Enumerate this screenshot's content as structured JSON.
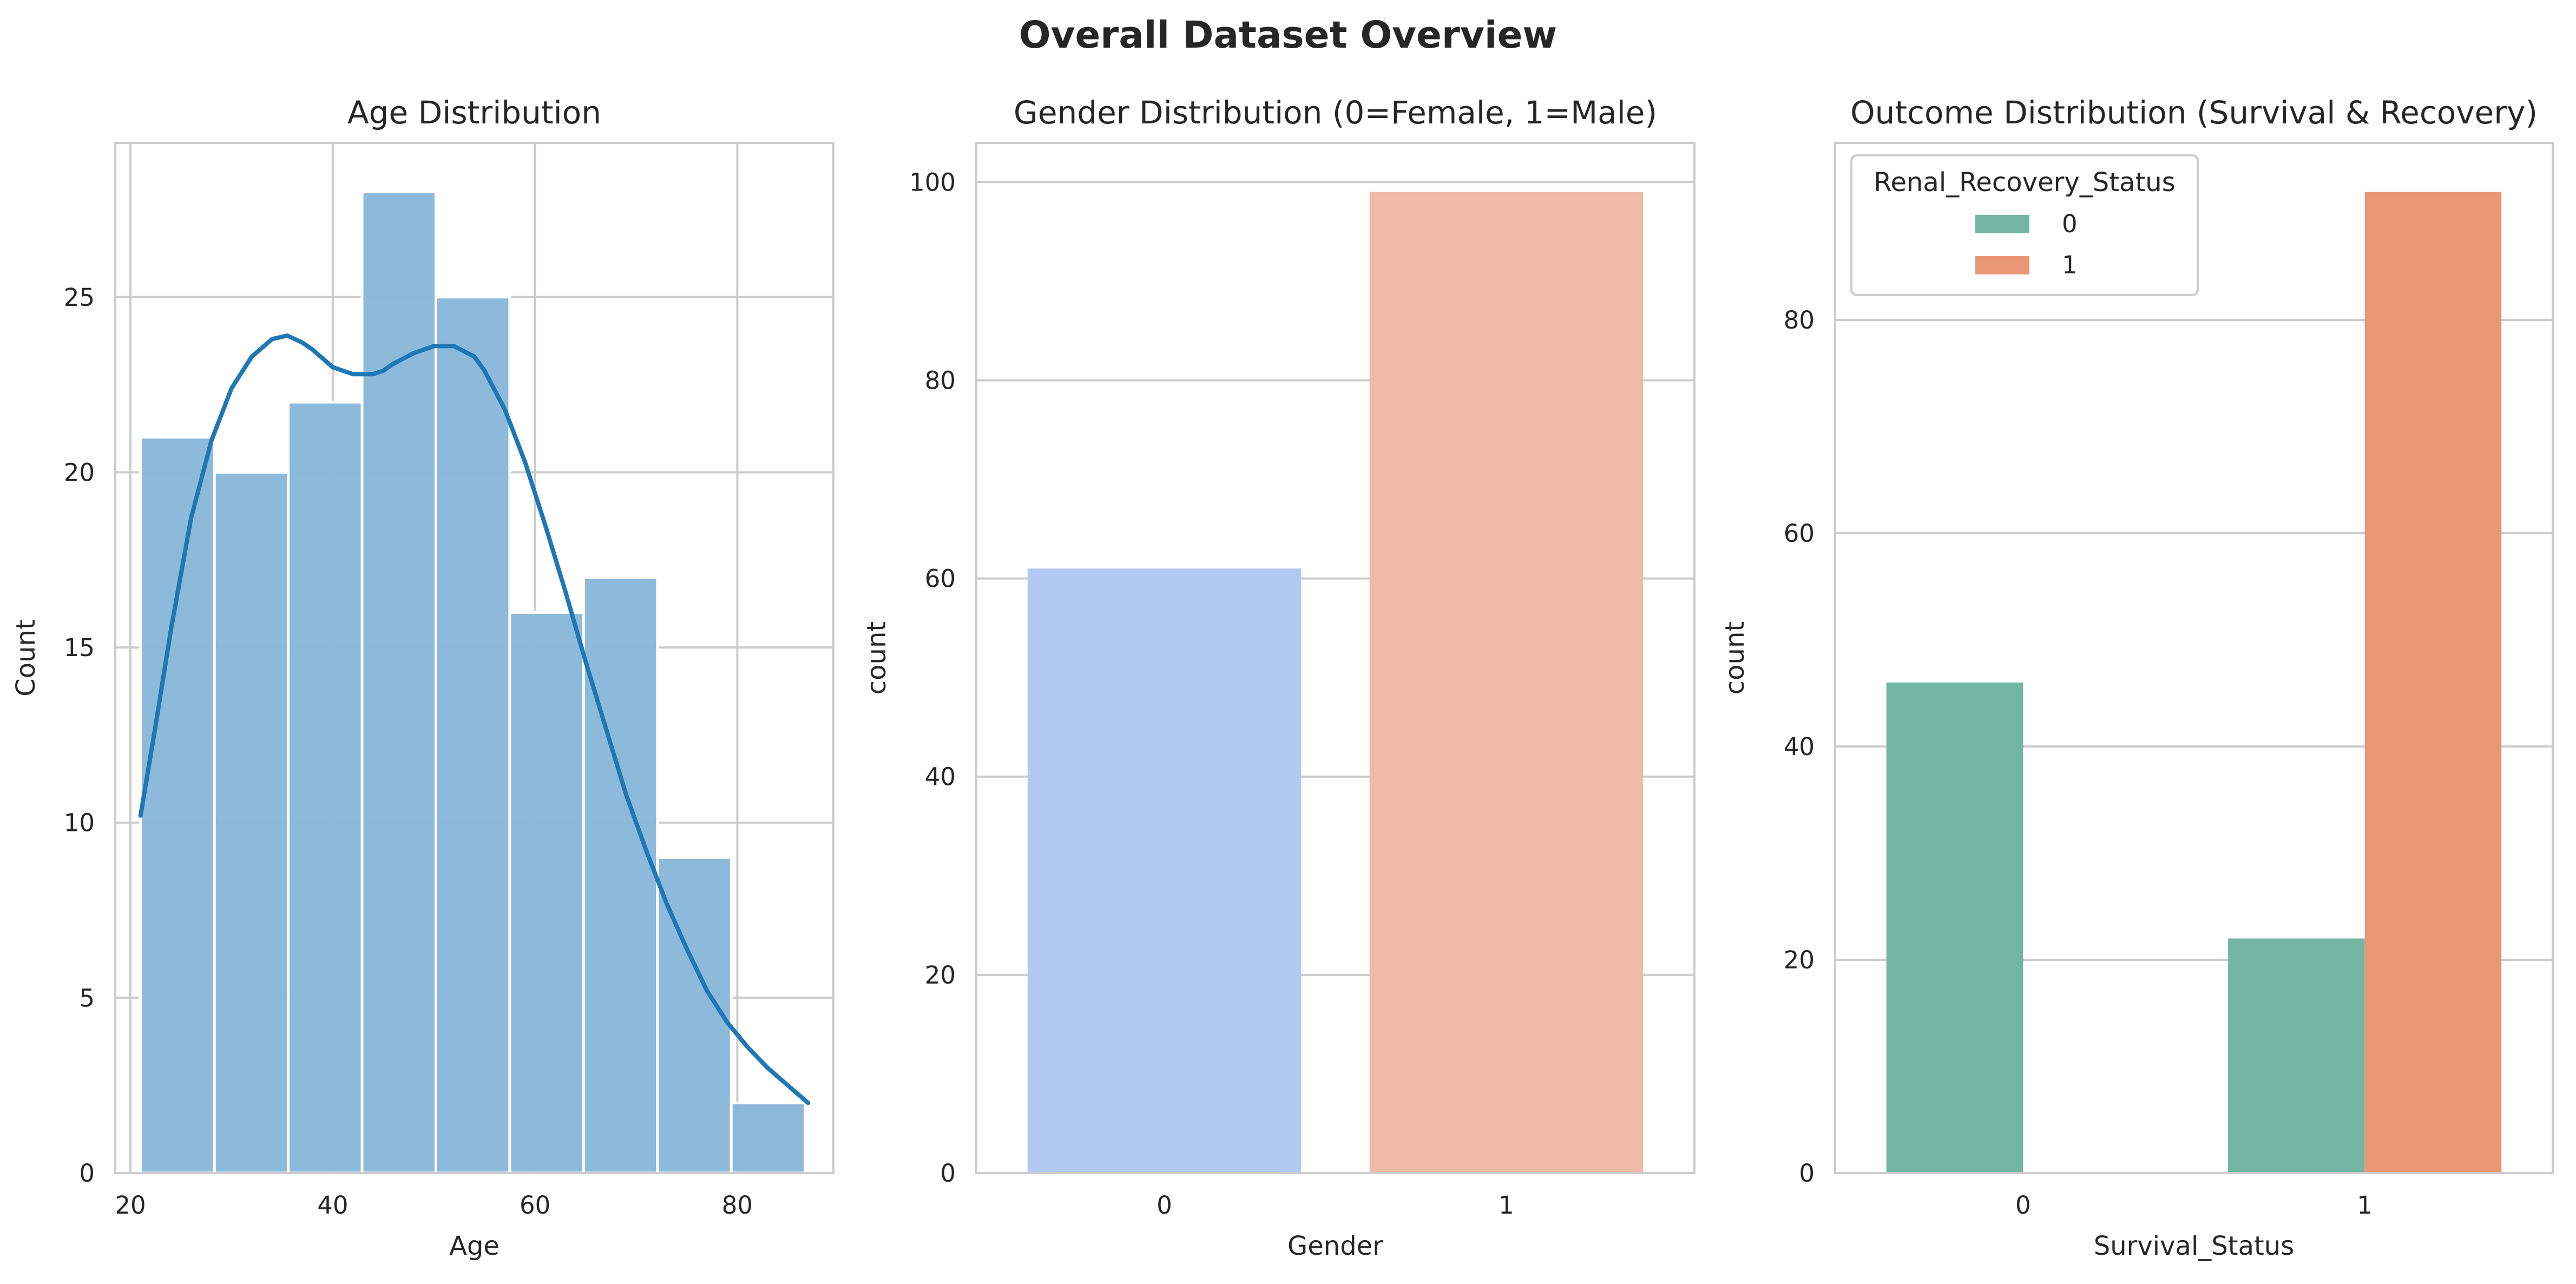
{
  "figure": {
    "title": "Overall Dataset Overview"
  },
  "chart_data": [
    {
      "type": "bar",
      "subtype": "histogram",
      "title": "Age Distribution",
      "xlabel": "Age",
      "ylabel": "Count",
      "xlim": [
        18.5,
        89.5
      ],
      "ylim": [
        0,
        29.4
      ],
      "xticks": [
        20,
        40,
        60,
        80
      ],
      "yticks": [
        0,
        5,
        10,
        15,
        20,
        25
      ],
      "bin_edges": [
        21.0,
        28.3,
        35.6,
        42.9,
        50.2,
        57.5,
        64.8,
        72.1,
        79.4,
        86.7
      ],
      "values": [
        21,
        20,
        22,
        28,
        25,
        16,
        17,
        9,
        2
      ],
      "color": "#8bb8da",
      "kde": {
        "color": "#1f77b4",
        "x": [
          21,
          22.5,
          24,
          26,
          28,
          30,
          32,
          34,
          35.5,
          37,
          38,
          40,
          42,
          44,
          45,
          46,
          48,
          50,
          52,
          54,
          55,
          57,
          59,
          61,
          63,
          65,
          67,
          69,
          71,
          73,
          75,
          77,
          79,
          81,
          83,
          85,
          87
        ],
        "y": [
          10.2,
          12.8,
          15.5,
          18.7,
          20.9,
          22.4,
          23.3,
          23.8,
          23.9,
          23.7,
          23.5,
          23.0,
          22.8,
          22.8,
          22.9,
          23.1,
          23.4,
          23.6,
          23.6,
          23.3,
          22.9,
          21.8,
          20.3,
          18.5,
          16.6,
          14.6,
          12.7,
          10.8,
          9.2,
          7.7,
          6.4,
          5.2,
          4.3,
          3.6,
          3.0,
          2.5,
          2.0
        ]
      },
      "grid": true
    },
    {
      "type": "bar",
      "title": "Gender Distribution (0=Female, 1=Male)",
      "xlabel": "Gender",
      "ylabel": "count",
      "categories": [
        "0",
        "1"
      ],
      "values": [
        61,
        99
      ],
      "colors": [
        "#b4c9f2",
        "#edbba6"
      ],
      "ylim": [
        0,
        103.95
      ],
      "yticks": [
        0,
        20,
        40,
        60,
        80,
        100
      ],
      "grid": true
    },
    {
      "type": "bar",
      "subtype": "grouped",
      "title": "Outcome Distribution (Survival & Recovery)",
      "xlabel": "Survival_Status",
      "ylabel": "count",
      "categories": [
        "0",
        "1"
      ],
      "series": [
        {
          "name": "0",
          "values": [
            46,
            22
          ],
          "color": "#72b6a1"
        },
        {
          "name": "1",
          "values": [
            0,
            92
          ],
          "color": "#e99675"
        }
      ],
      "ylim": [
        0,
        96.6
      ],
      "yticks": [
        0,
        20,
        40,
        60,
        80
      ],
      "legend": {
        "title": "Renal_Recovery_Status",
        "position": "upper-left"
      },
      "grid": true
    }
  ]
}
